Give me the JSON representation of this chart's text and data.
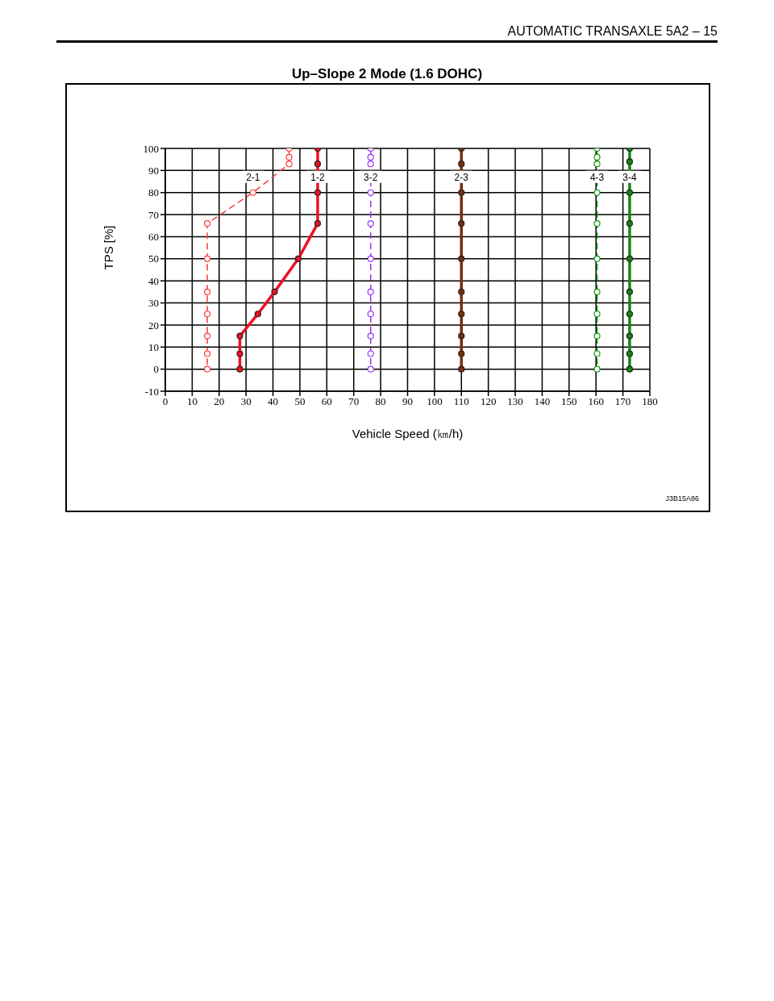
{
  "chart_data": {
    "type": "line",
    "title": "Up–Slope 2 Mode (1.6 DOHC)",
    "xlabel": "Vehicle Speed (㎞/h)",
    "ylabel": "TPS [%]",
    "annotations": [
      "AUTOMATIC TRANSAXLE  5A2 – 15",
      "J3B15A86"
    ],
    "xlim": [
      0,
      180
    ],
    "xticks": [
      0,
      10,
      20,
      30,
      40,
      50,
      60,
      70,
      80,
      90,
      100,
      110,
      120,
      130,
      140,
      150,
      160,
      170,
      180
    ],
    "ylim": [
      -10,
      100
    ],
    "yticks": [
      -10,
      0,
      10,
      20,
      30,
      40,
      50,
      60,
      70,
      80,
      90,
      100
    ],
    "grid": true,
    "legend": false,
    "marker": "circle",
    "series": [
      {
        "name": "2-1",
        "color": "#ff3b3b",
        "line_style": "dashed",
        "x": [
          46,
          46,
          46,
          32.6,
          15.6,
          15.6,
          15.6,
          15.6,
          15.6,
          15.6,
          15.6
        ],
        "values": [
          100,
          96,
          93,
          80,
          66,
          50,
          35,
          25,
          15,
          7,
          0
        ]
      },
      {
        "name": "1-2",
        "color": "#ee1122",
        "line_style": "solid",
        "x": [
          56.6,
          56.6,
          56.6,
          56.6,
          49.4,
          40.6,
          34.4,
          27.7,
          27.7,
          27.7
        ],
        "values": [
          100,
          93,
          80,
          66,
          50,
          35,
          25,
          15,
          7,
          0
        ]
      },
      {
        "name": "3-2",
        "color": "#9933ff",
        "line_style": "dashed",
        "x": [
          76.3,
          76.3,
          76.3,
          76.3,
          76.3,
          76.3,
          76.3,
          76.3,
          76.3,
          76.3,
          76.3
        ],
        "values": [
          100,
          96,
          93,
          80,
          66,
          50,
          35,
          25,
          15,
          7,
          0
        ]
      },
      {
        "name": "2-3",
        "color": "#7a2e0a",
        "line_style": "solid",
        "x": [
          110,
          110,
          110,
          110,
          110,
          110,
          110,
          110,
          110,
          110
        ],
        "values": [
          100,
          93,
          80,
          66,
          50,
          35,
          25,
          15,
          7,
          0
        ]
      },
      {
        "name": "4-3",
        "color": "#119911",
        "line_style": "dashed",
        "x": [
          160.4,
          160.4,
          160.4,
          160.4,
          160.4,
          160.4,
          160.4,
          160.4,
          160.4,
          160.4,
          160.4
        ],
        "values": [
          100,
          96,
          93,
          80,
          66,
          50,
          35,
          25,
          15,
          7,
          0
        ]
      },
      {
        "name": "3-4",
        "color": "#118811",
        "line_style": "solid",
        "x": [
          172.5,
          172.5,
          172.5,
          172.5,
          172.5,
          172.5,
          172.5,
          172.5,
          172.5,
          172.5
        ],
        "values": [
          100,
          94,
          80,
          66,
          50,
          35,
          25,
          15,
          7,
          0
        ]
      }
    ]
  }
}
